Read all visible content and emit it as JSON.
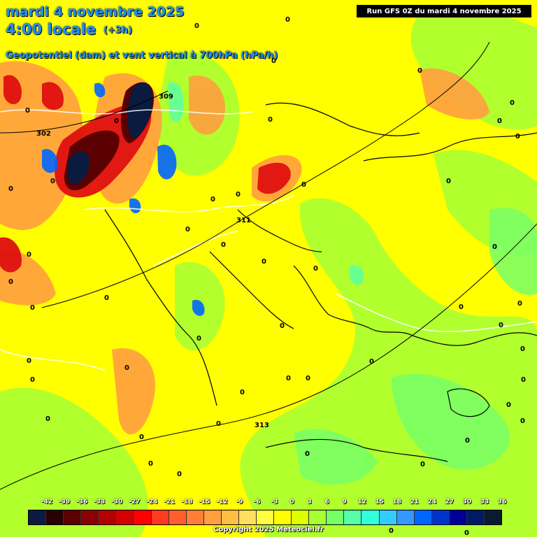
{
  "title": {
    "date": "mardi 4 novembre 2025",
    "time": "4:00 locale",
    "offset": "(+3h)",
    "parameter": "Geopotentiel (dam) et vent vertical à 700hPa (hPa/h)"
  },
  "run_info": "Run GFS 0Z du mardi 4 novembre 2025",
  "copyright": "Copyright 2025 Meteociel.fr",
  "legend": {
    "ticks": [
      "-42",
      "-39",
      "-36",
      "-33",
      "-30",
      "-27",
      "-24",
      "-21",
      "-18",
      "-15",
      "-12",
      "-9",
      "-6",
      "-3",
      "0",
      "3",
      "6",
      "9",
      "12",
      "15",
      "18",
      "21",
      "24",
      "27",
      "30",
      "33",
      "36"
    ],
    "colors": [
      "#0b1a3f",
      "#2a0000",
      "#5a0000",
      "#8b0000",
      "#b30000",
      "#d40000",
      "#ff0000",
      "#ff3b1f",
      "#ff5f2e",
      "#ff7f3a",
      "#ff9f3f",
      "#ffbf40",
      "#ffdf60",
      "#ffff40",
      "#ffff00",
      "#ddff00",
      "#aaff33",
      "#77ff66",
      "#55ffaa",
      "#33ffdd",
      "#33ccff",
      "#3399ff",
      "#0066ff",
      "#0033cc",
      "#000099",
      "#001a66",
      "#0a1a33"
    ]
  },
  "contour_labels": {
    "geopotential": [
      "302",
      "309",
      "311",
      "313"
    ],
    "vertical_wind_zero": "0"
  }
}
